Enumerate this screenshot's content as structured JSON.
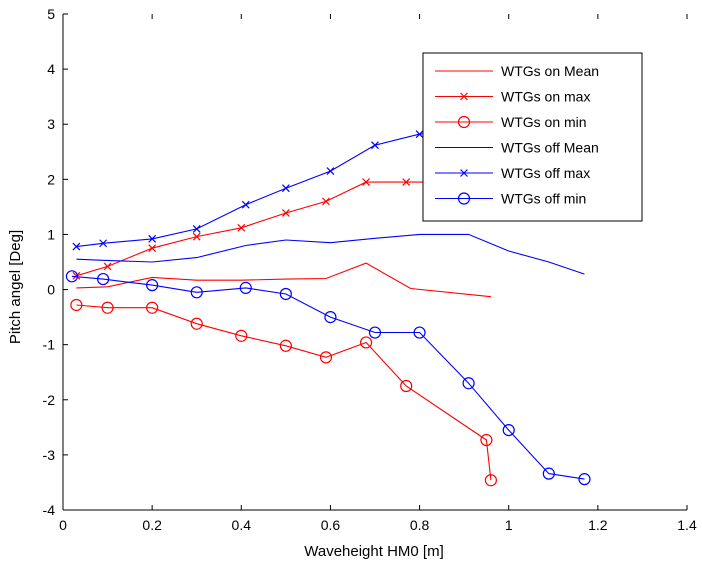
{
  "chart_data": {
    "type": "line",
    "title": "",
    "xlabel": "Waveheight HM0 [m]",
    "ylabel": "Pitch angel [Deg]",
    "xlim": [
      0,
      1.4
    ],
    "ylim": [
      -4,
      5
    ],
    "xticks": [
      0,
      0.2,
      0.4,
      0.6,
      0.8,
      1,
      1.2,
      1.4
    ],
    "xtick_labels": [
      "0",
      "0.2",
      "0.4",
      "0.6",
      "0.8",
      "1",
      "1.2",
      "1.4"
    ],
    "yticks": [
      -4,
      -3,
      -2,
      -1,
      0,
      1,
      2,
      3,
      4,
      5
    ],
    "ytick_labels": [
      "-4",
      "-3",
      "-2",
      "-1",
      "0",
      "1",
      "2",
      "3",
      "4",
      "5"
    ],
    "grid": false,
    "legend_position": "top-right",
    "series": [
      {
        "name": "WTGs on Mean",
        "color": "#ff0000",
        "marker": "none",
        "x": [
          0.03,
          0.1,
          0.2,
          0.3,
          0.4,
          0.5,
          0.59,
          0.68,
          0.78,
          0.96
        ],
        "y": [
          0.03,
          0.05,
          0.22,
          0.17,
          0.17,
          0.19,
          0.2,
          0.48,
          0.02,
          -0.13
        ]
      },
      {
        "name": "WTGs on max",
        "color": "#ff0000",
        "marker": "x",
        "x": [
          0.03,
          0.1,
          0.2,
          0.3,
          0.4,
          0.5,
          0.59,
          0.68,
          0.77,
          0.96
        ],
        "y": [
          0.25,
          0.42,
          0.75,
          0.96,
          1.12,
          1.39,
          1.6,
          1.95,
          1.95,
          1.95
        ]
      },
      {
        "name": "WTGs on min",
        "color": "#ff0000",
        "marker": "o",
        "x": [
          0.03,
          0.1,
          0.2,
          0.3,
          0.4,
          0.5,
          0.59,
          0.68,
          0.77,
          0.95,
          0.96
        ],
        "y": [
          -0.28,
          -0.33,
          -0.33,
          -0.62,
          -0.84,
          -1.02,
          -1.23,
          -0.96,
          -1.75,
          -2.73,
          -3.46
        ]
      },
      {
        "name": "WTGs off Mean",
        "color": "#0000ff",
        "marker": "none",
        "x": [
          0.03,
          0.09,
          0.2,
          0.3,
          0.41,
          0.5,
          0.6,
          0.7,
          0.8,
          0.91,
          1,
          1.09,
          1.17
        ],
        "y": [
          0.55,
          0.53,
          0.5,
          0.58,
          0.8,
          0.9,
          0.85,
          0.93,
          1.0,
          1.0,
          0.7,
          0.5,
          0.28
        ]
      },
      {
        "name": "WTGs off max",
        "color": "#0000ff",
        "marker": "x",
        "x": [
          0.03,
          0.09,
          0.2,
          0.3,
          0.41,
          0.5,
          0.6,
          0.7,
          0.8,
          0.91,
          1,
          1.09,
          1.17
        ],
        "y": [
          0.78,
          0.84,
          0.92,
          1.1,
          1.54,
          1.84,
          2.15,
          2.62,
          2.82,
          2.85,
          2.85,
          2.85,
          2.85
        ]
      },
      {
        "name": "WTGs off min",
        "color": "#0000ff",
        "marker": "o",
        "x": [
          0.02,
          0.09,
          0.2,
          0.3,
          0.41,
          0.5,
          0.6,
          0.7,
          0.8,
          0.91,
          1,
          1.09,
          1.17
        ],
        "y": [
          0.24,
          0.19,
          0.08,
          -0.05,
          0.03,
          -0.08,
          -0.5,
          -0.78,
          -0.78,
          -1.7,
          -2.55,
          -3.34,
          -3.44
        ]
      }
    ]
  }
}
